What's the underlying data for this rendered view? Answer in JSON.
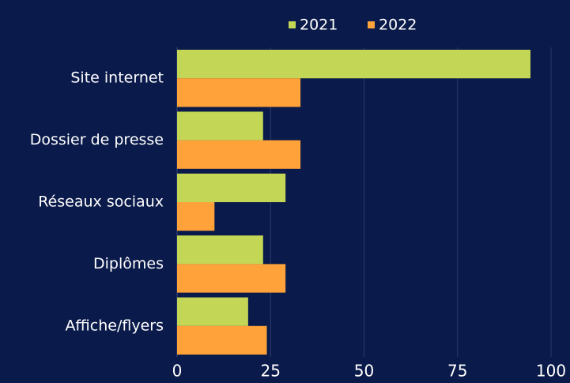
{
  "chart_data": {
    "type": "hbar",
    "categories": [
      "Site internet",
      "Dossier de presse",
      "Réseaux sociaux",
      "Diplômes",
      "Affiche/flyers"
    ],
    "series": [
      {
        "name": "2021",
        "color": "#c3d655",
        "values": [
          94.5,
          23,
          29,
          23,
          19
        ]
      },
      {
        "name": "2022",
        "color": "#ffa23a",
        "values": [
          33,
          33,
          10,
          29,
          24
        ]
      }
    ],
    "xlim": [
      0,
      100
    ],
    "xticks": [
      0,
      25,
      50,
      75,
      100
    ],
    "grid": true,
    "legend": "top"
  }
}
